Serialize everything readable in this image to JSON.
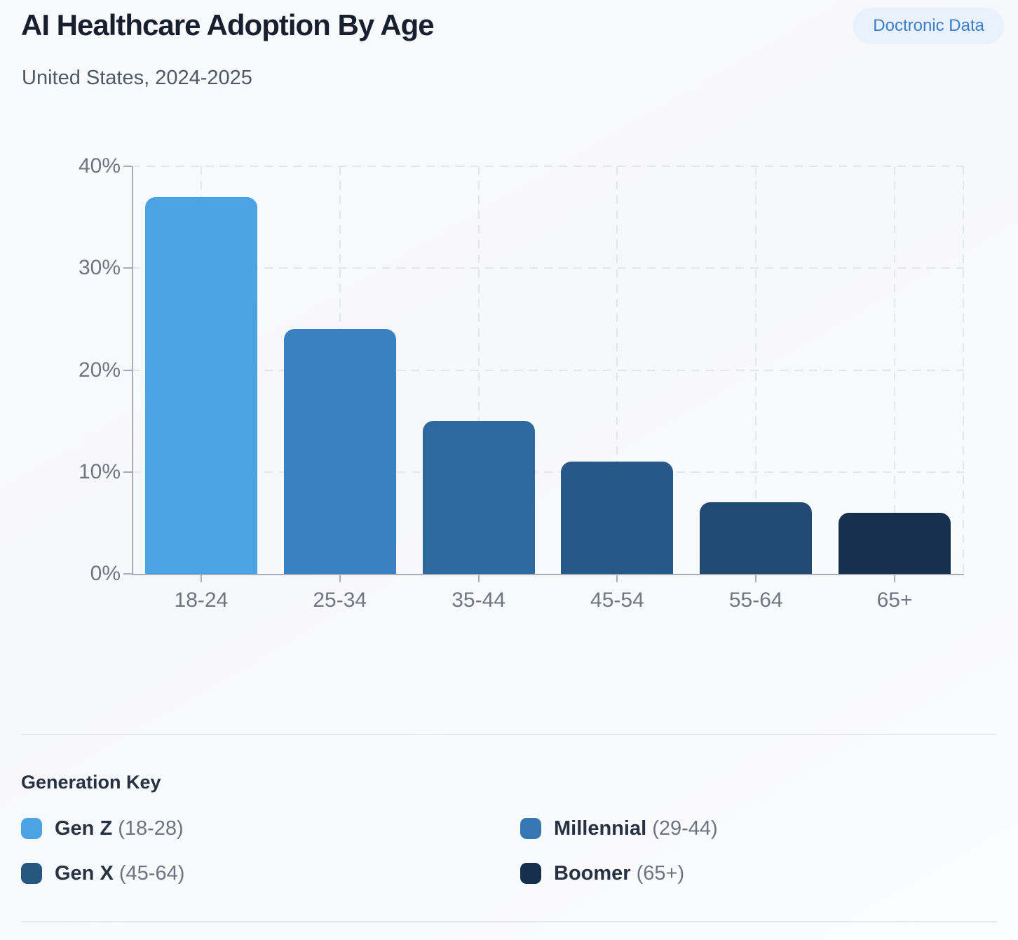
{
  "header": {
    "title": "AI Healthcare Adoption By Age",
    "subtitle": "United States, 2024-2025",
    "badge": "Doctronic Data"
  },
  "chart_data": {
    "type": "bar",
    "title": "AI Healthcare Adoption By Age",
    "subtitle": "United States, 2024-2025",
    "categories": [
      "18-24",
      "25-34",
      "35-44",
      "45-54",
      "55-64",
      "65+"
    ],
    "values": [
      37,
      24,
      15,
      11,
      7,
      6
    ],
    "unit": "%",
    "bar_colors": [
      "#4BA3E3",
      "#3B80C1",
      "#2D689F",
      "#26598A",
      "#204A72",
      "#16304E"
    ],
    "xlabel": "",
    "ylabel": "",
    "ylim": [
      0,
      40
    ],
    "yticks": [
      40,
      30,
      20,
      10,
      0
    ],
    "ytick_suffix": "%",
    "grid": "dashed horizontal gridlines at 10/20/30/40% and dashed vertical gridlines at each category center and right edge",
    "legend_position": "below chart"
  },
  "legend": {
    "title": "Generation Key",
    "items": [
      {
        "name": "Gen Z",
        "range": "(18-28)",
        "color": "#4BA3E3"
      },
      {
        "name": "Millennial",
        "range": "(29-44)",
        "color": "#3578B2"
      },
      {
        "name": "Gen X",
        "range": "(45-64)",
        "color": "#27567F"
      },
      {
        "name": "Boomer",
        "range": "(65+)",
        "color": "#152F4C"
      }
    ]
  },
  "colors": {
    "accent_badge_bg": "#E8F1FC",
    "accent_badge_text": "#3A7CC7",
    "axis": "#A6ADB8",
    "gridline": "#E3E6ED",
    "axis_text": "#6E7683",
    "title_text": "#18202F",
    "subtitle_text": "#4E5967"
  }
}
